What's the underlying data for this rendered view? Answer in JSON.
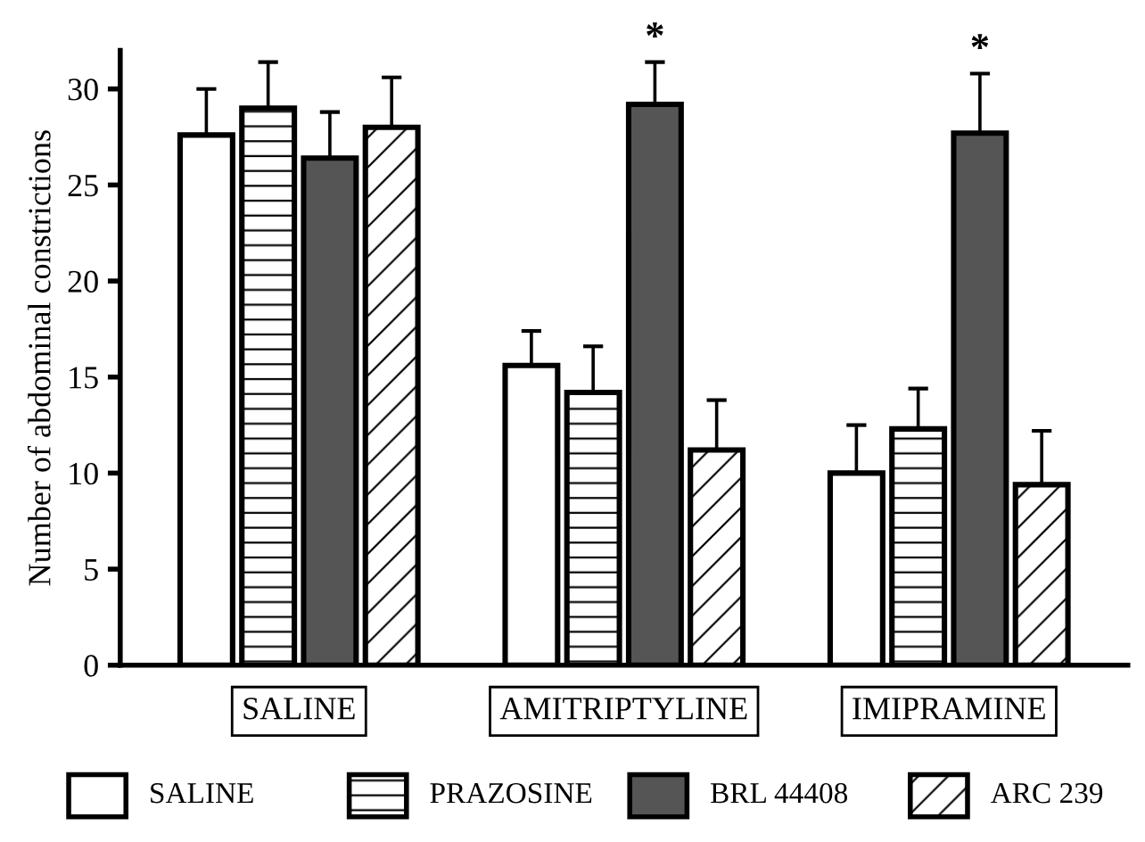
{
  "chart_data": {
    "type": "bar",
    "ylabel": "Number of abdominal constrictions",
    "categories": [
      "SALINE",
      "AMITRIPTYLINE",
      "IMIPRAMINE"
    ],
    "series": [
      {
        "name": "SALINE",
        "color": "#ffffff",
        "values": [
          27.6,
          15.6,
          10.0
        ],
        "errors": [
          [
            27.6,
            30.0
          ],
          [
            15.6,
            17.4
          ],
          [
            10.0,
            12.5
          ]
        ]
      },
      {
        "name": "PRAZOSINE",
        "color": "#ffffff",
        "values": [
          29.0,
          14.2,
          12.3
        ],
        "errors": [
          [
            29.0,
            31.4
          ],
          [
            14.2,
            16.6
          ],
          [
            12.3,
            14.4
          ]
        ]
      },
      {
        "name": "BRL 44408",
        "color": "#555555",
        "values": [
          26.4,
          29.2,
          27.7
        ],
        "errors": [
          [
            26.4,
            28.8
          ],
          [
            29.2,
            31.4
          ],
          [
            27.7,
            30.8
          ]
        ]
      },
      {
        "name": "ARC 239",
        "color": "#ffffff",
        "values": [
          28.0,
          11.2,
          9.4
        ],
        "errors": [
          [
            28.0,
            30.6
          ],
          [
            11.2,
            13.8
          ],
          [
            9.4,
            12.2
          ]
        ]
      }
    ],
    "annotations": [
      "*",
      "*"
    ],
    "ylim": [
      0,
      32
    ],
    "yticks": [
      0,
      5,
      10,
      15,
      20,
      25,
      30
    ],
    "grid": false,
    "legend": "bottom"
  }
}
